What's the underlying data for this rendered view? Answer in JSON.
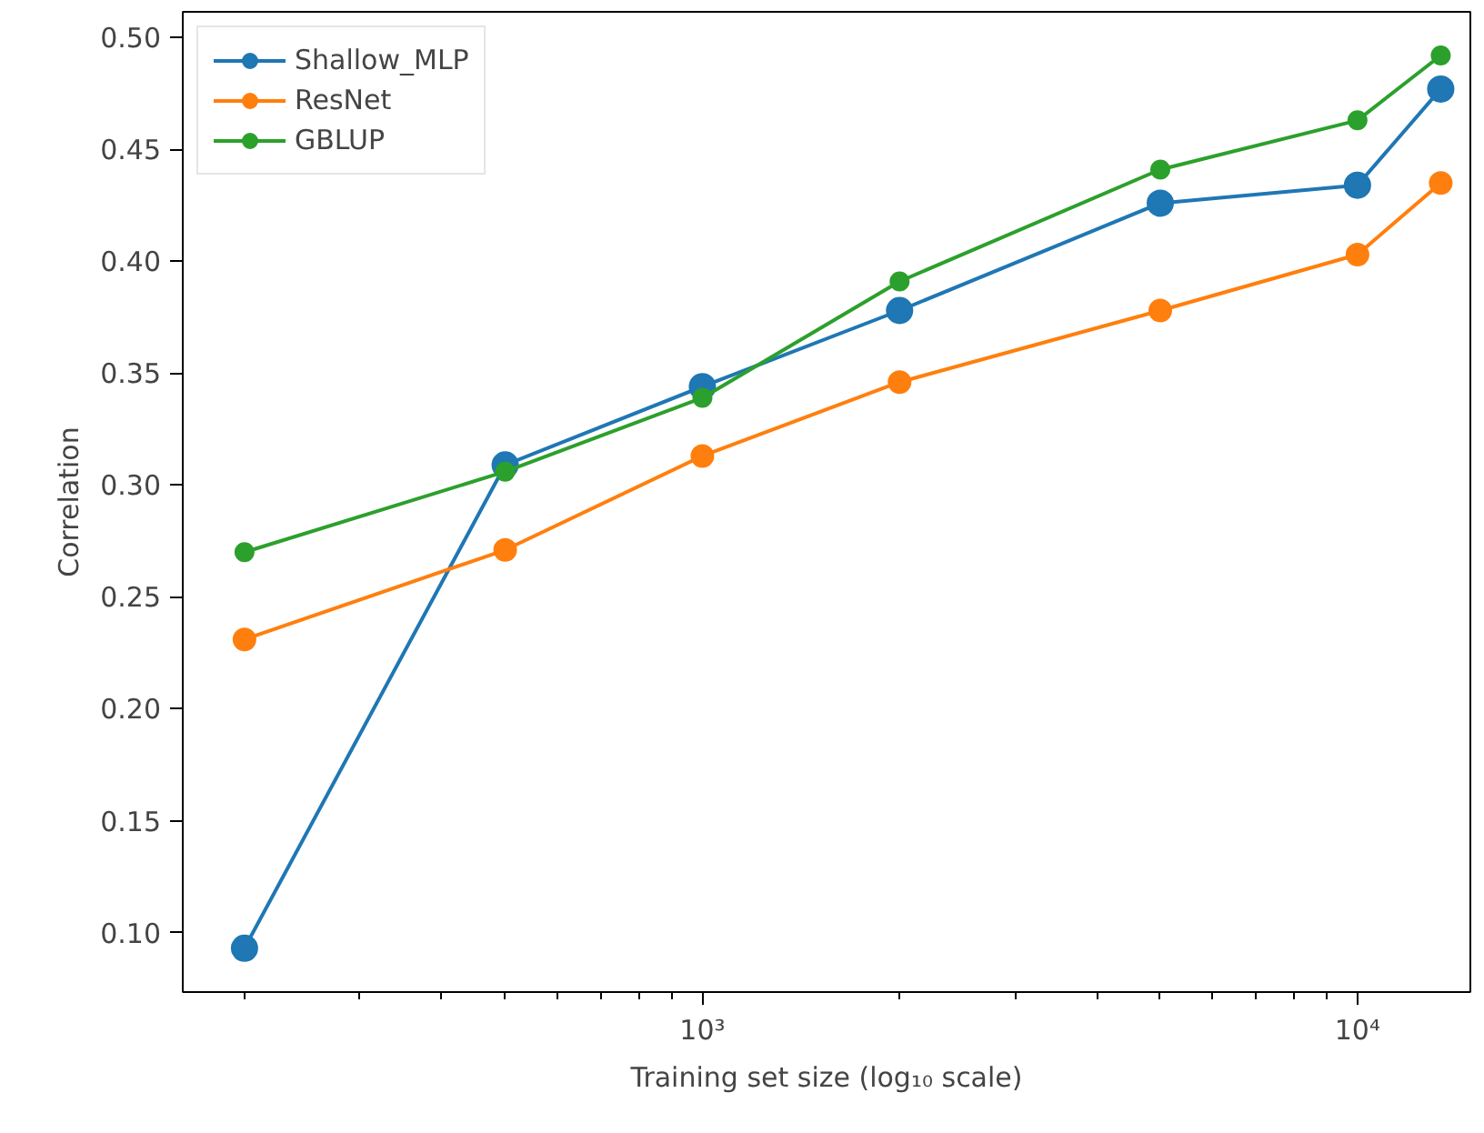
{
  "chart_data": {
    "type": "line",
    "xlabel": "Training set size (log₁₀ scale)",
    "ylabel": "Correlation",
    "x": [
      200,
      500,
      1000,
      2000,
      5000,
      10000,
      13400
    ],
    "series": [
      {
        "name": "Shallow_MLP",
        "color": "#1f77b4",
        "values": [
          0.093,
          0.309,
          0.344,
          0.378,
          0.426,
          0.434,
          0.477
        ]
      },
      {
        "name": "ResNet",
        "color": "#ff7f0e",
        "values": [
          0.231,
          0.271,
          0.313,
          0.346,
          0.378,
          0.403,
          0.435
        ]
      },
      {
        "name": "GBLUP",
        "color": "#2ca02c",
        "values": [
          0.27,
          0.306,
          0.339,
          0.391,
          0.441,
          0.463,
          0.492
        ]
      }
    ],
    "log": "x",
    "xlim": [
      161,
      14870
    ],
    "ylim": [
      0.0734,
      0.5115
    ],
    "xticks": [
      {
        "value": 1000,
        "label": "10³"
      },
      {
        "value": 10000,
        "label": "10⁴"
      }
    ],
    "yticks": [
      {
        "value": 0.1,
        "label": "0.10"
      },
      {
        "value": 0.15,
        "label": "0.15"
      },
      {
        "value": 0.2,
        "label": "0.20"
      },
      {
        "value": 0.25,
        "label": "0.25"
      },
      {
        "value": 0.3,
        "label": "0.30"
      },
      {
        "value": 0.35,
        "label": "0.35"
      },
      {
        "value": 0.4,
        "label": "0.40"
      },
      {
        "value": 0.45,
        "label": "0.45"
      },
      {
        "value": 0.5,
        "label": "0.50"
      }
    ],
    "grid": false,
    "legend": "top left",
    "marker": "circle",
    "line_style": "solid"
  }
}
